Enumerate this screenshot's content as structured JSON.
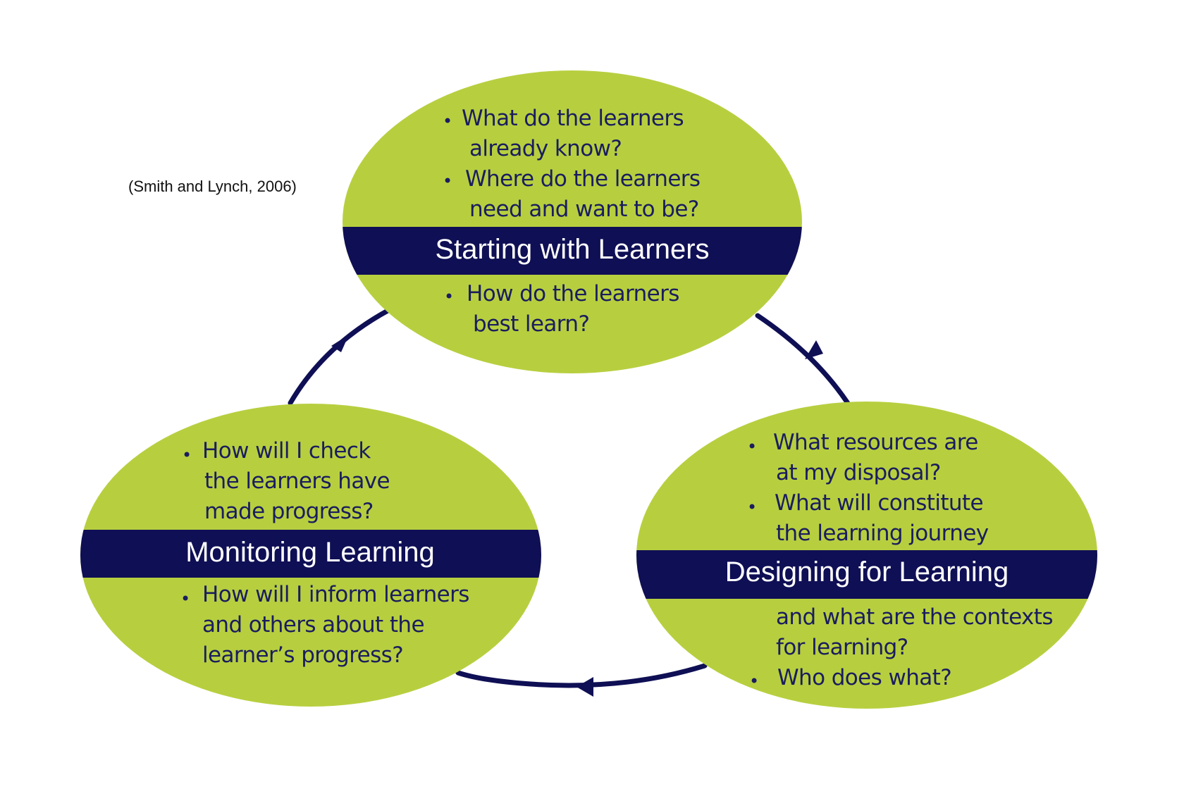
{
  "citation": "(Smith and Lynch, 2006)",
  "colors": {
    "ellipse_fill": "#b7cf3f",
    "band": "#0f0f55",
    "text": "#1a1d5e",
    "arrow": "#0f0f55"
  },
  "stages": [
    {
      "title": "Starting with Learners",
      "bullets": [
        [
          "What do the learners",
          "already know?"
        ],
        [
          "Where do the learners",
          "need and want to be?"
        ],
        [
          "How do the learners",
          "best learn?"
        ]
      ]
    },
    {
      "title": "Designing for Learning",
      "bullets": [
        [
          "What resources are",
          "at my disposal?"
        ],
        [
          "What will constitute",
          "the learning journey",
          "and what are the contexts",
          "for learning?"
        ],
        [
          "Who does what?"
        ]
      ]
    },
    {
      "title": "Monitoring Learning",
      "bullets": [
        [
          "How will I check",
          "the learners have",
          "made progress?"
        ],
        [
          "How will I inform learners",
          "and others about the",
          "learner’s progress?"
        ]
      ]
    }
  ]
}
